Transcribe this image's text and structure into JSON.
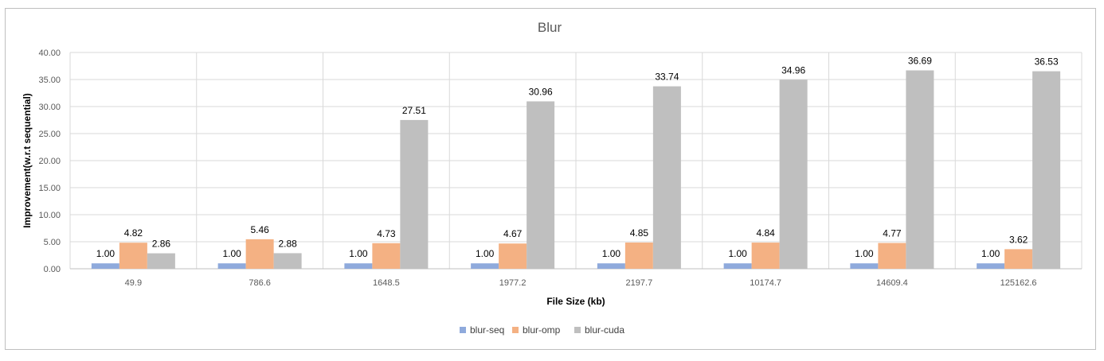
{
  "chart_data": {
    "type": "bar",
    "title": "Blur",
    "xlabel": "File Size (kb)",
    "ylabel": "Improvement(w.r.t sequential)",
    "ylim": [
      0,
      40
    ],
    "yticks": [
      "0.00",
      "5.00",
      "10.00",
      "15.00",
      "20.00",
      "25.00",
      "30.00",
      "35.00",
      "40.00"
    ],
    "categories": [
      "49.9",
      "786.6",
      "1648.5",
      "1977.2",
      "2197.7",
      "10174.7",
      "14609.4",
      "125162.6"
    ],
    "series": [
      {
        "name": "blur-seq",
        "color": "#8faadc",
        "values": [
          1.0,
          1.0,
          1.0,
          1.0,
          1.0,
          1.0,
          1.0,
          1.0
        ],
        "labels": [
          "1.00",
          "1.00",
          "1.00",
          "1.00",
          "1.00",
          "1.00",
          "1.00",
          "1.00"
        ]
      },
      {
        "name": "blur-omp",
        "color": "#f4b183",
        "values": [
          4.82,
          5.46,
          4.73,
          4.67,
          4.85,
          4.84,
          4.77,
          3.62
        ],
        "labels": [
          "4.82",
          "5.46",
          "4.73",
          "4.67",
          "4.85",
          "4.84",
          "4.77",
          "3.62"
        ]
      },
      {
        "name": "blur-cuda",
        "color": "#bfbfbf",
        "values": [
          2.86,
          2.88,
          27.51,
          30.96,
          33.74,
          34.96,
          36.69,
          36.53
        ],
        "labels": [
          "2.86",
          "2.88",
          "27.51",
          "30.96",
          "33.74",
          "34.96",
          "36.69",
          "36.53"
        ]
      }
    ],
    "grid": true,
    "legend_position": "bottom"
  }
}
